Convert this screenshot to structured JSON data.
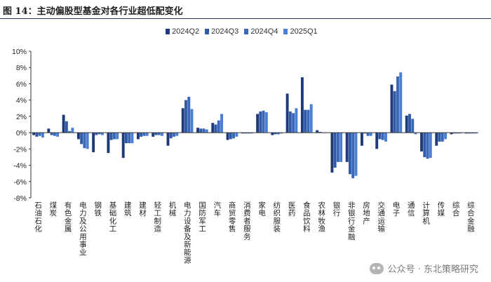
{
  "figure": {
    "label": "图 14：主动偏股型基金对各行业超低配变化"
  },
  "watermark": {
    "text": "公众号 · 东北策略研究",
    "icon": "wechat-icon"
  },
  "colors": [
    "#1f3a78",
    "#2e5aa8",
    "#3a67b8",
    "#4a7fd3"
  ],
  "chart_data": {
    "type": "bar",
    "title": "",
    "xlabel": "",
    "ylabel": "",
    "ylim": [
      -8,
      10
    ],
    "yticks": [
      -8,
      -6,
      -4,
      -2,
      0,
      2,
      4,
      6,
      8,
      10
    ],
    "ytick_labels": [
      "-8%",
      "-6%",
      "-4%",
      "-2%",
      "0%",
      "2%",
      "4%",
      "6%",
      "8%",
      "10%"
    ],
    "legend_position": "top-center",
    "grid": false,
    "categories": [
      "石油石化",
      "煤炭",
      "有色金属",
      "电力及公用事业",
      "钢铁",
      "基础化工",
      "建筑",
      "建材",
      "轻工制造",
      "机械",
      "电力设备及新能源",
      "国防军工",
      "汽车",
      "商贸零售",
      "消费者服务",
      "家电",
      "纺织服装",
      "医药",
      "食品饮料",
      "农林牧渔",
      "银行",
      "非银行金融",
      "房地产",
      "交通运输",
      "电子",
      "通信",
      "计算机",
      "传媒",
      "综合",
      "综合金融"
    ],
    "series": [
      {
        "name": "2024Q2",
        "values": [
          -0.3,
          0.5,
          2.2,
          -0.8,
          -2.4,
          -2.5,
          -3.1,
          -0.8,
          -0.5,
          -1.6,
          3.0,
          0.6,
          1.2,
          -0.9,
          -0.1,
          2.3,
          -0.3,
          4.8,
          6.8,
          0.3,
          -4.9,
          -3.6,
          -1.6,
          -2.0,
          5.9,
          2.1,
          -2.3,
          -1.6,
          -0.2,
          -0.1
        ]
      },
      {
        "name": "2024Q3",
        "values": [
          -0.5,
          -0.3,
          1.4,
          -1.4,
          -0.3,
          -0.9,
          -1.3,
          -0.5,
          -0.3,
          -0.7,
          4.0,
          0.5,
          1.0,
          -0.8,
          -0.1,
          2.6,
          -0.2,
          2.6,
          2.8,
          0.1,
          -4.3,
          -5.1,
          -0.1,
          -0.8,
          5.1,
          2.3,
          -3.0,
          -1.1,
          -0.1,
          -0.1
        ]
      },
      {
        "name": "2024Q4",
        "values": [
          -0.4,
          -0.4,
          0.2,
          -1.9,
          -0.2,
          -0.8,
          -1.3,
          -0.4,
          -0.3,
          -0.5,
          4.4,
          0.5,
          1.5,
          -0.7,
          -0.1,
          2.7,
          -0.2,
          2.4,
          2.8,
          0.0,
          -3.6,
          -5.6,
          -0.4,
          -0.9,
          6.9,
          1.7,
          -3.2,
          -1.1,
          -0.1,
          -0.1
        ]
      },
      {
        "name": "2025Q1",
        "values": [
          -0.6,
          -0.5,
          0.6,
          -2.0,
          -0.3,
          -0.8,
          -1.3,
          -0.4,
          -0.4,
          -0.4,
          2.9,
          0.4,
          2.3,
          -0.5,
          -0.1,
          2.5,
          -0.1,
          3.0,
          3.5,
          0.0,
          -3.6,
          -5.3,
          -0.4,
          -1.1,
          7.4,
          -0.2,
          -3.1,
          -0.8,
          -0.1,
          -0.1
        ]
      }
    ]
  }
}
